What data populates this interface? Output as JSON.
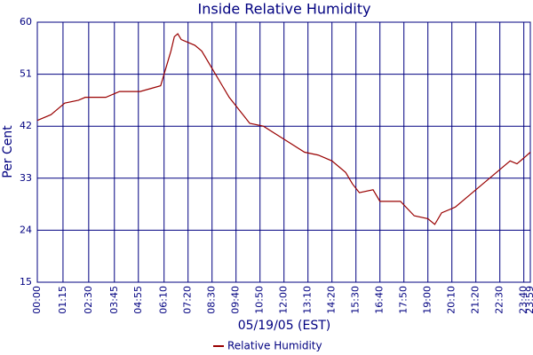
{
  "chart_data": {
    "type": "line",
    "title": "Inside Relative Humidity",
    "y_label": "Per Cent",
    "x_label": "05/19/05 (EST)",
    "x": [
      0,
      40,
      60,
      80,
      120,
      140,
      200,
      240,
      300,
      330,
      360,
      370,
      380,
      390,
      400,
      410,
      420,
      440,
      460,
      480,
      500,
      520,
      540,
      560,
      580,
      600,
      620,
      660,
      700,
      740,
      780,
      820,
      860,
      900,
      920,
      940,
      980,
      1000,
      1060,
      1100,
      1140,
      1160,
      1180,
      1220,
      1260,
      1300,
      1340,
      1380,
      1400,
      1420,
      1439
    ],
    "series": [
      {
        "name": "Relative Humidity",
        "color": "#990000",
        "values": [
          43,
          44,
          45,
          46,
          46.5,
          47,
          47,
          48,
          48,
          48.5,
          49,
          51,
          53,
          55,
          57.5,
          58,
          57,
          56.5,
          56,
          55,
          53,
          51,
          49,
          47,
          45.5,
          44,
          42.5,
          42,
          40.5,
          39,
          37.5,
          37,
          36,
          34,
          32,
          30.5,
          31,
          29,
          29,
          26.5,
          26,
          25,
          27,
          28,
          30,
          32,
          34,
          36,
          35.5,
          36.5,
          37.5
        ]
      }
    ],
    "xlim": [
      0,
      1439
    ],
    "xticks": [
      {
        "value": 0,
        "label": "00:00"
      },
      {
        "value": 75,
        "label": "01:15"
      },
      {
        "value": 150,
        "label": "02:30"
      },
      {
        "value": 225,
        "label": "03:45"
      },
      {
        "value": 295,
        "label": "04:55"
      },
      {
        "value": 370,
        "label": "06:10"
      },
      {
        "value": 440,
        "label": "07:20"
      },
      {
        "value": 510,
        "label": "08:30"
      },
      {
        "value": 580,
        "label": "09:40"
      },
      {
        "value": 650,
        "label": "10:50"
      },
      {
        "value": 720,
        "label": "12:00"
      },
      {
        "value": 790,
        "label": "13:10"
      },
      {
        "value": 860,
        "label": "14:20"
      },
      {
        "value": 930,
        "label": "15:30"
      },
      {
        "value": 1000,
        "label": "16:40"
      },
      {
        "value": 1070,
        "label": "17:50"
      },
      {
        "value": 1140,
        "label": "19:00"
      },
      {
        "value": 1210,
        "label": "20:10"
      },
      {
        "value": 1280,
        "label": "21:20"
      },
      {
        "value": 1350,
        "label": "22:30"
      },
      {
        "value": 1420,
        "label": "23:40"
      },
      {
        "value": 1439,
        "label": "23:59"
      }
    ],
    "ylim": [
      15,
      60
    ],
    "yticks": [
      15,
      24,
      33,
      42,
      51,
      60
    ],
    "grid": true,
    "grid_color": "#000080",
    "legend": "bottom"
  }
}
